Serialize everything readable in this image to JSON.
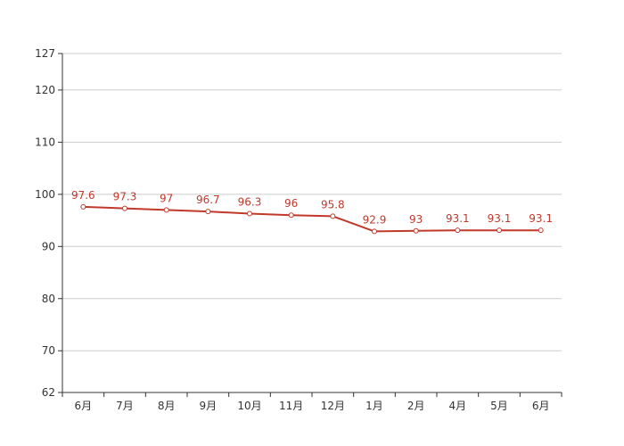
{
  "chart_data": {
    "type": "line",
    "categories": [
      "6月",
      "7月",
      "8月",
      "9月",
      "10月",
      "11月",
      "12月",
      "1月",
      "2月",
      "4月",
      "5月",
      "6月"
    ],
    "series": [
      {
        "values": [
          97.6,
          97.3,
          97,
          96.7,
          96.3,
          96,
          95.8,
          92.9,
          93,
          93.1,
          93.1,
          93.1
        ],
        "data_labels": [
          "97.6",
          "97.3",
          "97",
          "96.7",
          "96.3",
          "96",
          "95.8",
          "92.9",
          "93",
          "93.1",
          "93.1",
          "93.1"
        ]
      }
    ],
    "yticks": [
      62,
      70,
      80,
      90,
      100,
      110,
      120,
      127
    ],
    "ytick_labels": [
      "62",
      "70",
      "80",
      "90",
      "100",
      "110",
      "120",
      "127"
    ],
    "ylim": [
      62,
      127
    ],
    "grid": true,
    "line_color": "#c0392b",
    "grid_color": "#cccccc",
    "axis_color": "#333333"
  }
}
